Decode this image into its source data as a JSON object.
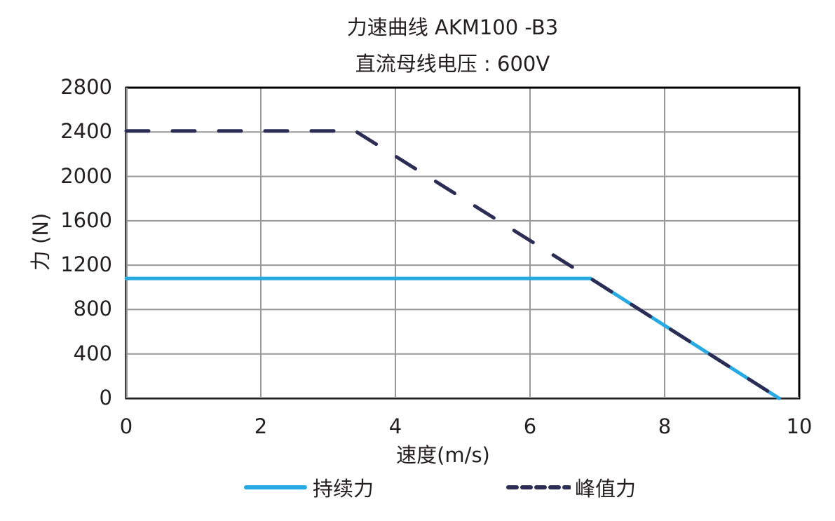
{
  "chart_data": {
    "type": "line",
    "title": "力速曲线  AKM100 -B3",
    "subtitle": "直流母线电压 : 600V",
    "xlabel": "速度(m/s)",
    "ylabel": "力 (N)",
    "xlim": [
      0,
      10
    ],
    "ylim": [
      0,
      2800
    ],
    "xticks": [
      "0",
      "2",
      "4",
      "6",
      "8",
      "10"
    ],
    "yticks": [
      "0",
      "400",
      "800",
      "1200",
      "1600",
      "2000",
      "2400",
      "2800"
    ],
    "grid": true,
    "legend_position": "bottom",
    "series": [
      {
        "name": "持续力",
        "style": "solid",
        "color": "#27a9e1",
        "x": [
          0,
          6.9,
          9.7
        ],
        "y": [
          1080,
          1080,
          0
        ]
      },
      {
        "name": "峰值力",
        "style": "dashed",
        "color": "#2b2d55",
        "x": [
          0,
          3.4,
          6.9,
          9.7
        ],
        "y": [
          2410,
          2410,
          1080,
          0
        ]
      }
    ]
  },
  "legend": {
    "continuous": "持续力",
    "peak": "峰值力"
  }
}
